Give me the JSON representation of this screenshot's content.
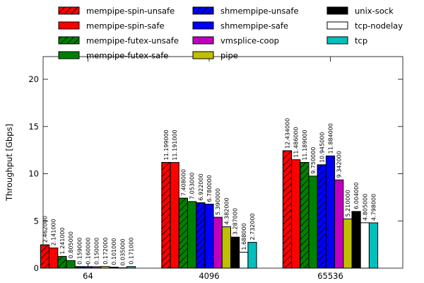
{
  "colors": {
    "background": "#ffffff",
    "axis": "#333333",
    "bar_outline": "#000000",
    "hatch": "#000000",
    "text": "#000000"
  },
  "chart_data": {
    "type": "bar",
    "title": "",
    "xlabel": "",
    "ylabel": "Throughput [Gbps]",
    "categories": [
      "64",
      "4096",
      "65536"
    ],
    "yticks": [
      0,
      5,
      10,
      15,
      20
    ],
    "ylim": [
      0,
      22.4
    ],
    "grid": false,
    "legend_position": "top",
    "value_label_decimals": 6,
    "series": [
      {
        "name": "mempipe-spin-unsafe",
        "color": "#ff0000",
        "hatch": true,
        "values": [
          2.462,
          11.199,
          12.434
        ]
      },
      {
        "name": "mempipe-spin-safe",
        "color": "#ff0000",
        "hatch": false,
        "values": [
          2.141,
          11.191,
          11.486
        ]
      },
      {
        "name": "mempipe-futex-unsafe",
        "color": "#008000",
        "hatch": true,
        "values": [
          1.241,
          7.408,
          11.189
        ]
      },
      {
        "name": "mempipe-futex-safe",
        "color": "#008000",
        "hatch": false,
        "values": [
          0.805,
          7.053,
          9.75
        ]
      },
      {
        "name": "shmempipe-unsafe",
        "color": "#0000ff",
        "hatch": true,
        "values": [
          0.159,
          6.922,
          10.945
        ]
      },
      {
        "name": "shmempipe-safe",
        "color": "#0000ff",
        "hatch": false,
        "values": [
          0.16,
          6.78,
          11.884
        ]
      },
      {
        "name": "vmsplice-coop",
        "color": "#bf00bf",
        "hatch": false,
        "values": [
          0.15,
          5.39,
          9.342
        ]
      },
      {
        "name": "pipe",
        "color": "#bfbf00",
        "hatch": false,
        "values": [
          0.172,
          4.382,
          5.21
        ]
      },
      {
        "name": "unix-sock",
        "color": "#000000",
        "hatch": false,
        "values": [
          0.101,
          3.287,
          6.004
        ]
      },
      {
        "name": "tcp-nodelay",
        "color": "#ffffff",
        "hatch": false,
        "values": [
          0.035,
          1.688,
          4.805
        ]
      },
      {
        "name": "tcp",
        "color": "#00bfbf",
        "hatch": false,
        "values": [
          0.171,
          2.732,
          4.798
        ]
      }
    ],
    "legend_columns": [
      [
        0,
        1,
        2,
        3
      ],
      [
        4,
        5,
        6,
        7
      ],
      [
        8,
        9,
        10
      ]
    ]
  }
}
